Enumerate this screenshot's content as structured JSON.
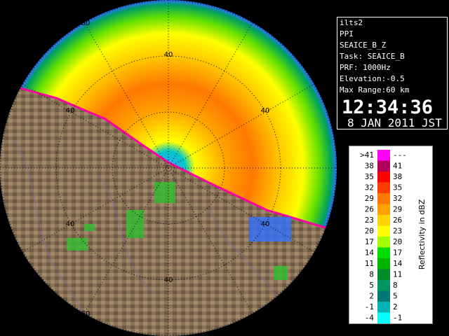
{
  "info": {
    "lines": [
      "ilts2",
      "PPI",
      "SEAICE_B_Z",
      "Task: SEAICE_B",
      "PRF: 1000Hz",
      "Elevation:-0.5",
      "Max Range:60 km"
    ],
    "time": "12:34:36",
    "date": "8 JAN 2011 JST"
  },
  "range_labels": [
    "60",
    "40",
    "40",
    "40",
    "40",
    "40",
    "40",
    "60"
  ],
  "legend": {
    "title": "Reflectivity in dBZ",
    "rows": [
      {
        "lower": ">41",
        "upper": "---",
        "color": "#ff00ff"
      },
      {
        "lower": "38",
        "upper": "41",
        "color": "#b0005a"
      },
      {
        "lower": "35",
        "upper": "38",
        "color": "#ff0000"
      },
      {
        "lower": "32",
        "upper": "35",
        "color": "#ff3c00"
      },
      {
        "lower": "29",
        "upper": "32",
        "color": "#ff7800"
      },
      {
        "lower": "26",
        "upper": "29",
        "color": "#ffa000"
      },
      {
        "lower": "23",
        "upper": "26",
        "color": "#ffd200"
      },
      {
        "lower": "20",
        "upper": "23",
        "color": "#ffff00"
      },
      {
        "lower": "17",
        "upper": "20",
        "color": "#a0ff00"
      },
      {
        "lower": "14",
        "upper": "17",
        "color": "#00e000"
      },
      {
        "lower": "11",
        "upper": "14",
        "color": "#00b400"
      },
      {
        "lower": "8",
        "upper": "11",
        "color": "#008c28"
      },
      {
        "lower": "5",
        "upper": "8",
        "color": "#009664"
      },
      {
        "lower": "2",
        "upper": "5",
        "color": "#007878"
      },
      {
        "lower": "-1",
        "upper": "2",
        "color": "#00b4b4"
      },
      {
        "lower": "-4",
        "upper": "-1",
        "color": "#00ffff"
      }
    ]
  }
}
